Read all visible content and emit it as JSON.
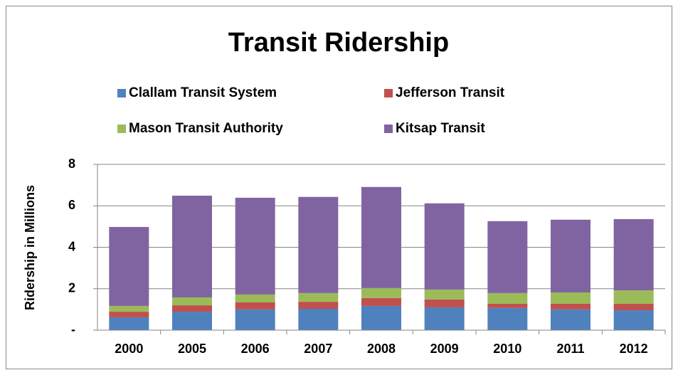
{
  "chart_data": {
    "type": "bar",
    "stacked": true,
    "title": "Transit Ridership",
    "y_label": "Ridership in Millions",
    "categories": [
      "2000",
      "2005",
      "2006",
      "2007",
      "2008",
      "2009",
      "2010",
      "2011",
      "2012"
    ],
    "series": [
      {
        "name": "Clallam Transit System",
        "color": "#4f81bd",
        "values": [
          0.62,
          0.89,
          1.0,
          1.03,
          1.17,
          1.1,
          1.07,
          1.0,
          0.96
        ]
      },
      {
        "name": "Jefferson Transit",
        "color": "#c0504d",
        "values": [
          0.27,
          0.31,
          0.34,
          0.34,
          0.38,
          0.38,
          0.2,
          0.27,
          0.31
        ]
      },
      {
        "name": "Mason Transit Authority",
        "color": "#9bbb59",
        "values": [
          0.28,
          0.38,
          0.38,
          0.42,
          0.48,
          0.48,
          0.52,
          0.55,
          0.65
        ]
      },
      {
        "name": "Kitsap Transit",
        "color": "#8064a2",
        "values": [
          3.81,
          4.91,
          4.67,
          4.64,
          4.88,
          4.16,
          3.47,
          3.51,
          3.44
        ]
      }
    ],
    "ylim": [
      0,
      8
    ],
    "yticks": [
      {
        "value": 0,
        "label": "-"
      },
      2,
      4,
      6,
      8
    ],
    "grid": true,
    "legend": "top"
  }
}
